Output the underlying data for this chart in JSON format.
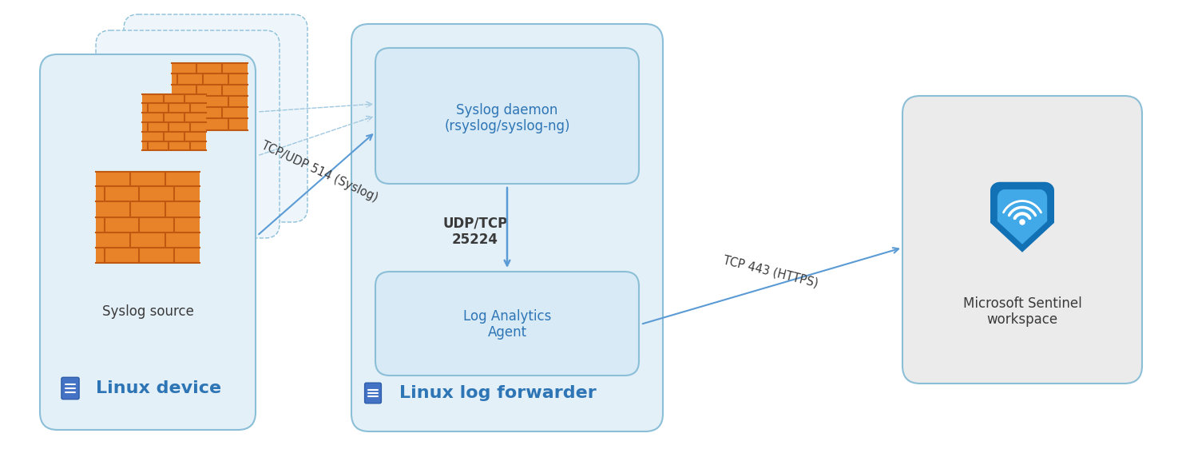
{
  "bg_color": "#ffffff",
  "panel_bg_light": "#e4f0f8",
  "panel_bg_lighter": "#eef6fb",
  "panel_bg_gray": "#ebebeb",
  "panel_border": "#8bbfd8",
  "box_inner_bg": "#d8eaf5",
  "box_inner_border": "#8bbfd8",
  "arrow_color": "#5b9bd5",
  "text_color_blue": "#2e75b6",
  "text_color_dark": "#3a3a3a",
  "orange_dark": "#c05a0a",
  "orange_mid": "#d96a1a",
  "orange_light": "#e8832a",
  "mortar_color": "#bf5810",
  "tcp_udp_label": "TCP/UDP 514 (Syslog)",
  "udp_tcp_label": "UDP/TCP\n25224",
  "tcp_https_label": "TCP 443 (HTTPS)",
  "syslog_daemon_text": "Syslog daemon\n(rsyslog/syslog-ng)",
  "log_analytics_text": "Log Analytics\nAgent",
  "linux_device_label": "Linux device",
  "linux_forwarder_label": "Linux log forwarder",
  "sentinel_label": "Microsoft Sentinel\nworkspace",
  "syslog_source_label": "Syslog source"
}
